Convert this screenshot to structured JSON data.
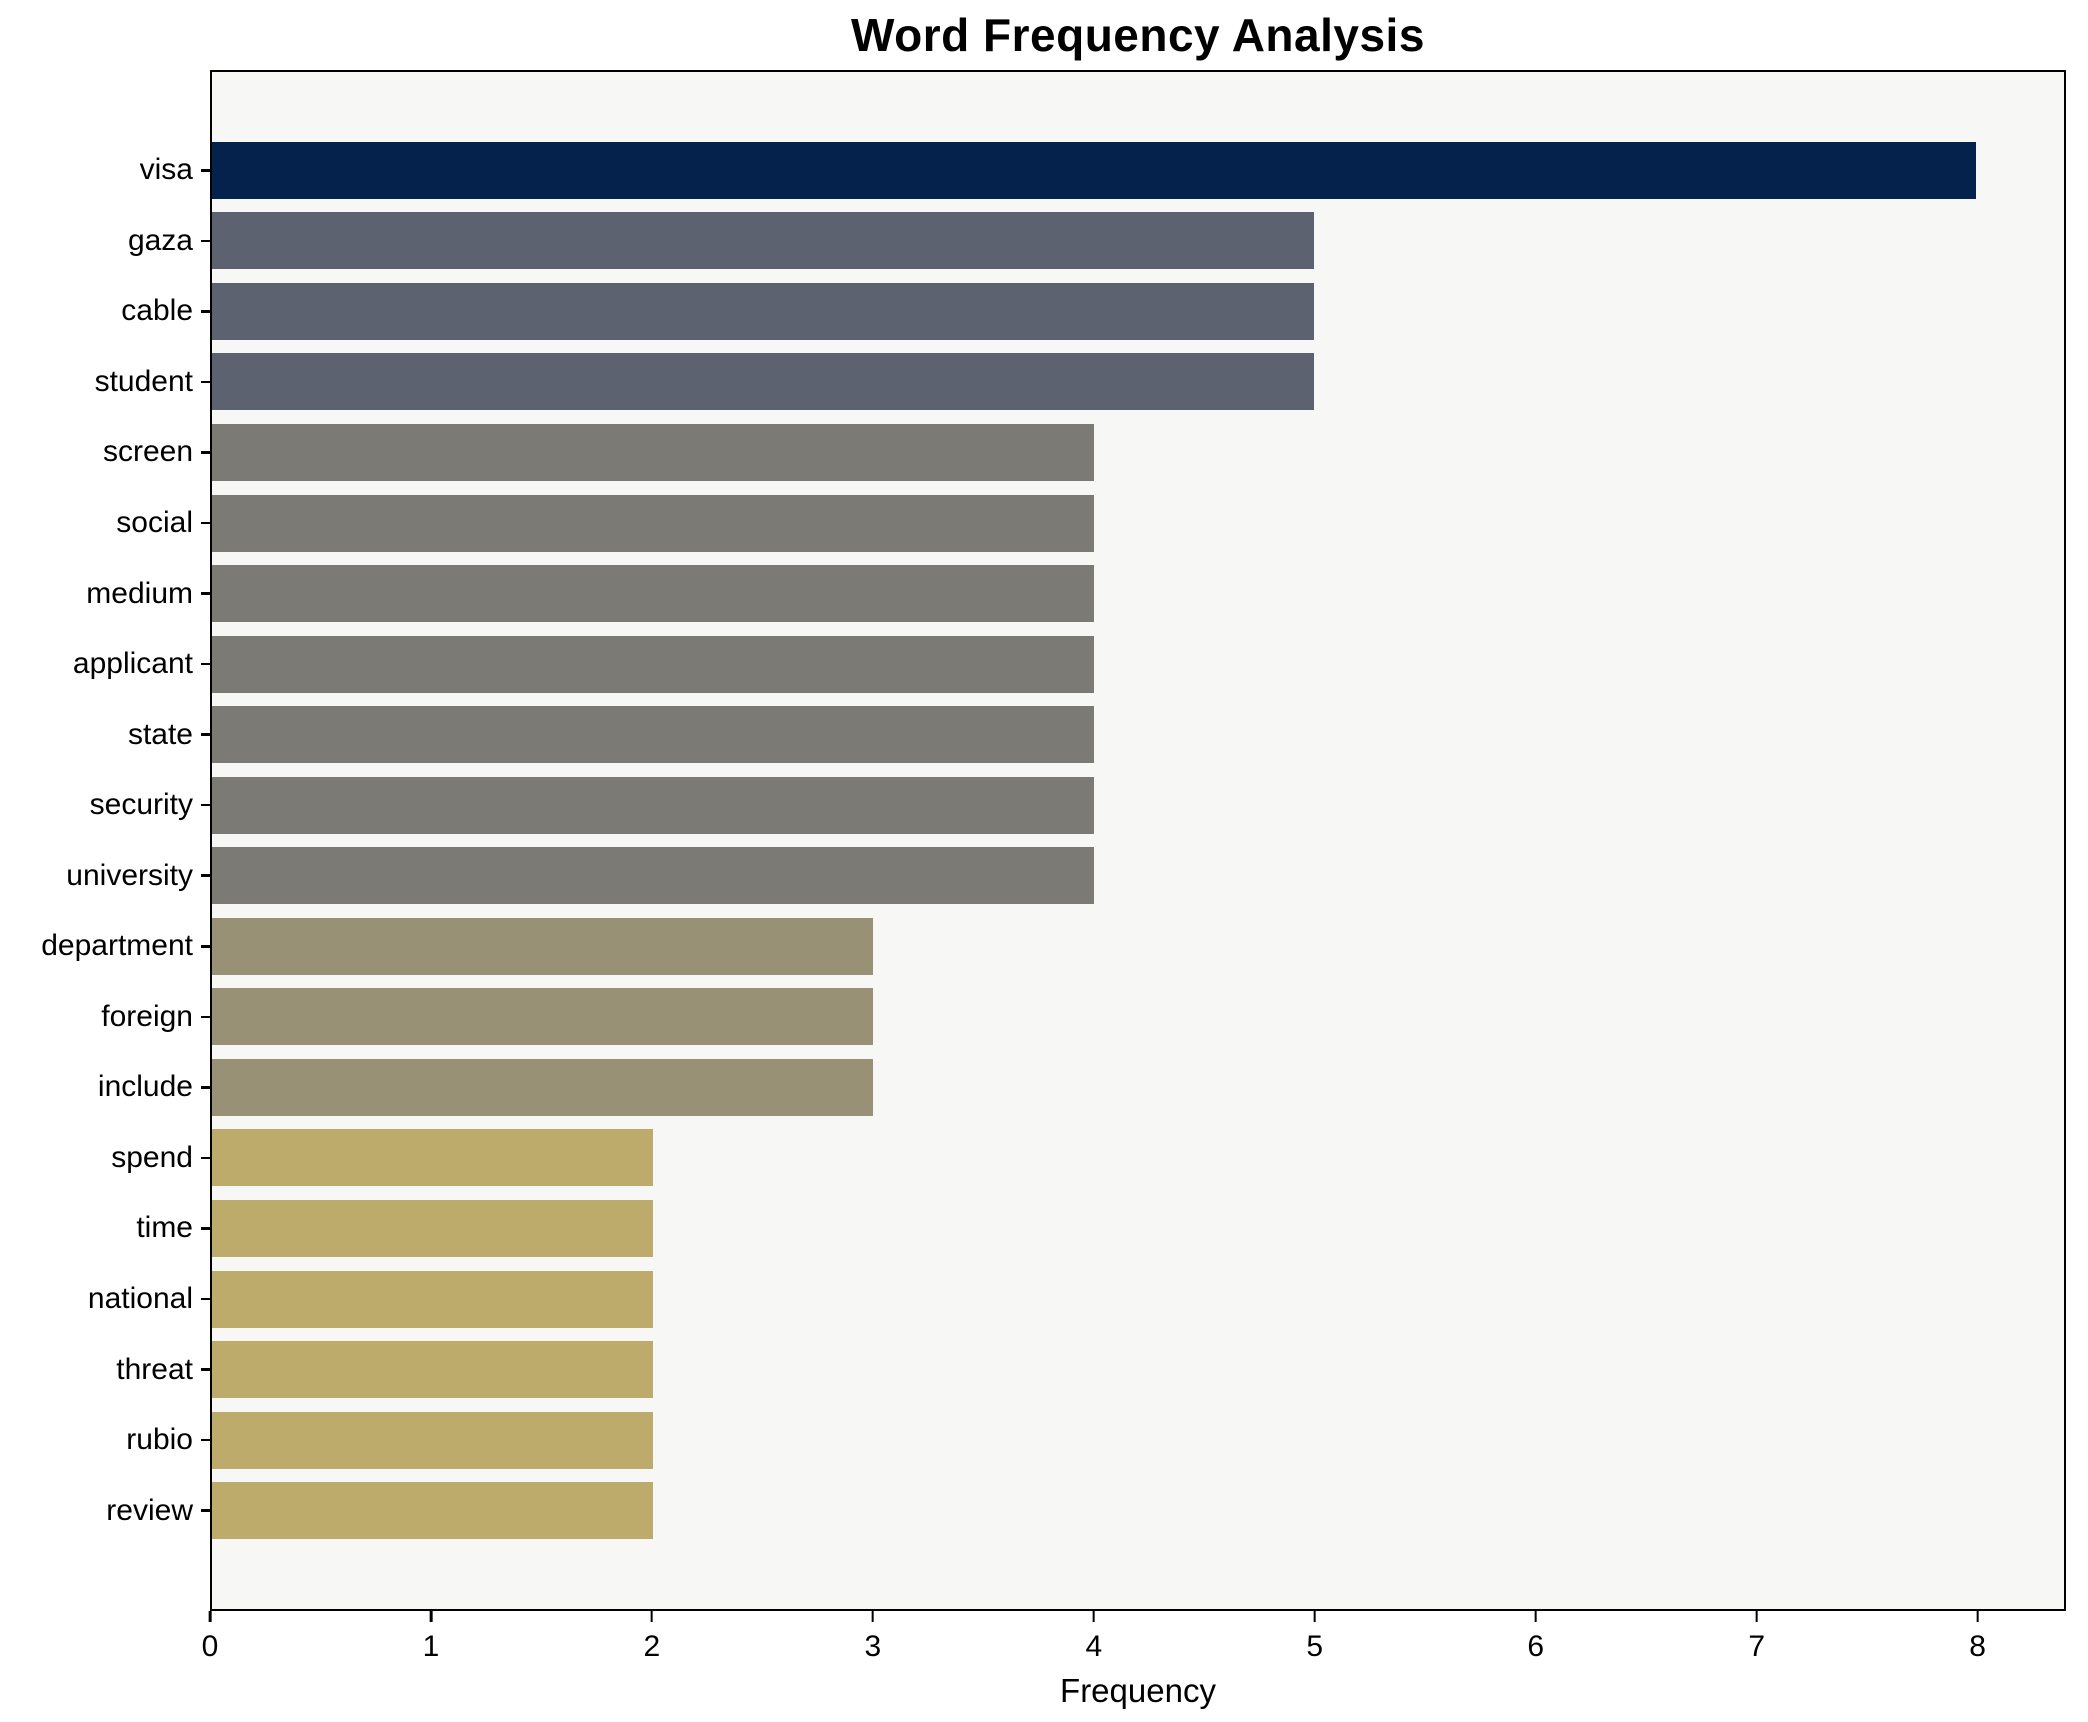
{
  "chart_data": {
    "type": "bar",
    "orientation": "horizontal",
    "title": "Word Frequency Analysis",
    "xlabel": "Frequency",
    "ylabel": "",
    "xlim": [
      0,
      8
    ],
    "x_ticks": [
      0,
      1,
      2,
      3,
      4,
      5,
      6,
      7,
      8
    ],
    "grid": false,
    "legend": false,
    "plot_background": "#f7f7f5",
    "figure_background": "#ffffff",
    "categories": [
      "visa",
      "gaza",
      "cable",
      "student",
      "screen",
      "social",
      "medium",
      "applicant",
      "state",
      "security",
      "university",
      "department",
      "foreign",
      "include",
      "spend",
      "time",
      "national",
      "threat",
      "rubio",
      "review"
    ],
    "values": [
      8,
      5,
      5,
      5,
      4,
      4,
      4,
      4,
      4,
      4,
      4,
      3,
      3,
      3,
      2,
      2,
      2,
      2,
      2,
      2
    ],
    "colors": [
      "#04224c",
      "#5c6270",
      "#5c6270",
      "#5c6270",
      "#7b7a75",
      "#7b7a75",
      "#7b7a75",
      "#7b7a75",
      "#7b7a75",
      "#7b7a75",
      "#7b7a75",
      "#999175",
      "#999175",
      "#999175",
      "#bcab6b",
      "#bcab6b",
      "#bcab6b",
      "#bcab6b",
      "#bcab6b",
      "#bcab6b"
    ]
  }
}
